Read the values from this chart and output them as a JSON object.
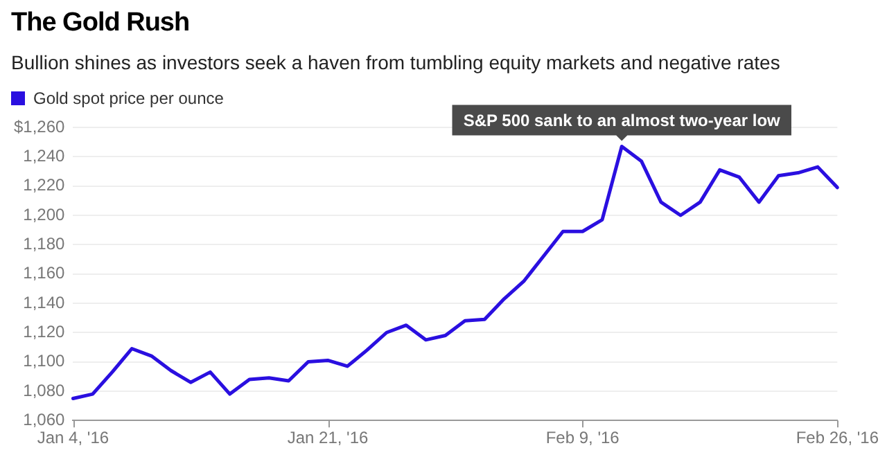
{
  "chart_data": {
    "type": "line",
    "title": "The Gold Rush",
    "subtitle": "Bullion shines as investors seek a haven from tumbling equity markets and negative rates",
    "categories": [
      "Jan 4, '16",
      null,
      null,
      null,
      null,
      null,
      null,
      null,
      null,
      null,
      null,
      null,
      null,
      "Jan 21, '16",
      null,
      null,
      null,
      null,
      null,
      null,
      null,
      null,
      null,
      null,
      null,
      null,
      "Feb 9, '16",
      null,
      null,
      null,
      null,
      null,
      null,
      null,
      null,
      null,
      null,
      null,
      null,
      "Feb 26, '16"
    ],
    "series": [
      {
        "name": "Gold spot price per ounce",
        "color": "#2a0fe0",
        "values": [
          1075,
          1078,
          1093,
          1109,
          1104,
          1094,
          1086,
          1093,
          1078,
          1088,
          1089,
          1087,
          1100,
          1101,
          1097,
          1108,
          1120,
          1125,
          1115,
          1118,
          1128,
          1129,
          1143,
          1155,
          1172,
          1189,
          1189,
          1197,
          1247,
          1237,
          1209,
          1200,
          1209,
          1231,
          1226,
          1209,
          1227,
          1229,
          1233,
          1219
        ]
      }
    ],
    "ylim": [
      1060,
      1260
    ],
    "yticks": [
      {
        "value": 1060,
        "label": "1,060"
      },
      {
        "value": 1080,
        "label": "1,080"
      },
      {
        "value": 1100,
        "label": "1,100"
      },
      {
        "value": 1120,
        "label": "1,120"
      },
      {
        "value": 1140,
        "label": "1,140"
      },
      {
        "value": 1160,
        "label": "1,160"
      },
      {
        "value": 1180,
        "label": "1,180"
      },
      {
        "value": 1200,
        "label": "1,200"
      },
      {
        "value": 1220,
        "label": "1,220"
      },
      {
        "value": 1240,
        "label": "1,240"
      },
      {
        "value": 1260,
        "label": "$1,260"
      }
    ],
    "annotations": [
      {
        "text": "S&P 500 sank to an almost two-year low",
        "y": 1247
      }
    ],
    "grid": "y",
    "legend": "top left",
    "marker": "none",
    "line_style": "solid"
  }
}
